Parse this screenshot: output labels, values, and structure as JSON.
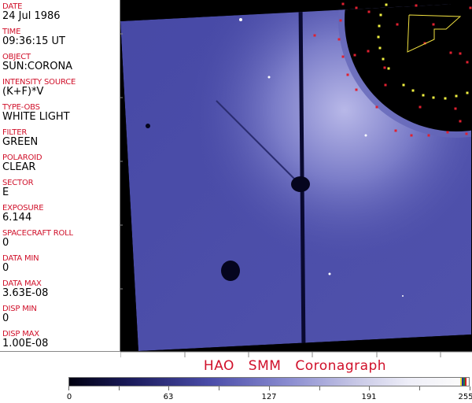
{
  "fields": [
    {
      "label": "DATE",
      "value": "24 Jul 1986"
    },
    {
      "label": "TIME",
      "value": "09:36:15 UT"
    },
    {
      "label": "OBJECT",
      "value": "SUN:CORONA"
    },
    {
      "label": "INTENSITY SOURCE",
      "value": "(K+F)*V"
    },
    {
      "label": "TYPE-OBS",
      "value": "WHITE LIGHT"
    },
    {
      "label": "FILTER",
      "value": "GREEN"
    },
    {
      "label": "POLAROID",
      "value": "CLEAR"
    },
    {
      "label": "SECTOR",
      "value": "E"
    },
    {
      "label": "EXPOSURE",
      "value": "6.144"
    },
    {
      "label": "SPACECRAFT ROLL",
      "value": "0"
    },
    {
      "label": "DATA MIN",
      "value": "0"
    },
    {
      "label": "DATA MAX",
      "value": "3.63E-08"
    },
    {
      "label": "DISP MIN",
      "value": "0"
    },
    {
      "label": "DISP MAX",
      "value": "1.00E-08"
    }
  ],
  "title": "HAO  SMM  Coronagraph",
  "colorbar": {
    "ticks": [
      "0",
      "63",
      "127",
      "191",
      "255"
    ],
    "min": 0,
    "max": 255
  },
  "colors": {
    "label": "#d0102a",
    "image": "#4a4ca8"
  }
}
